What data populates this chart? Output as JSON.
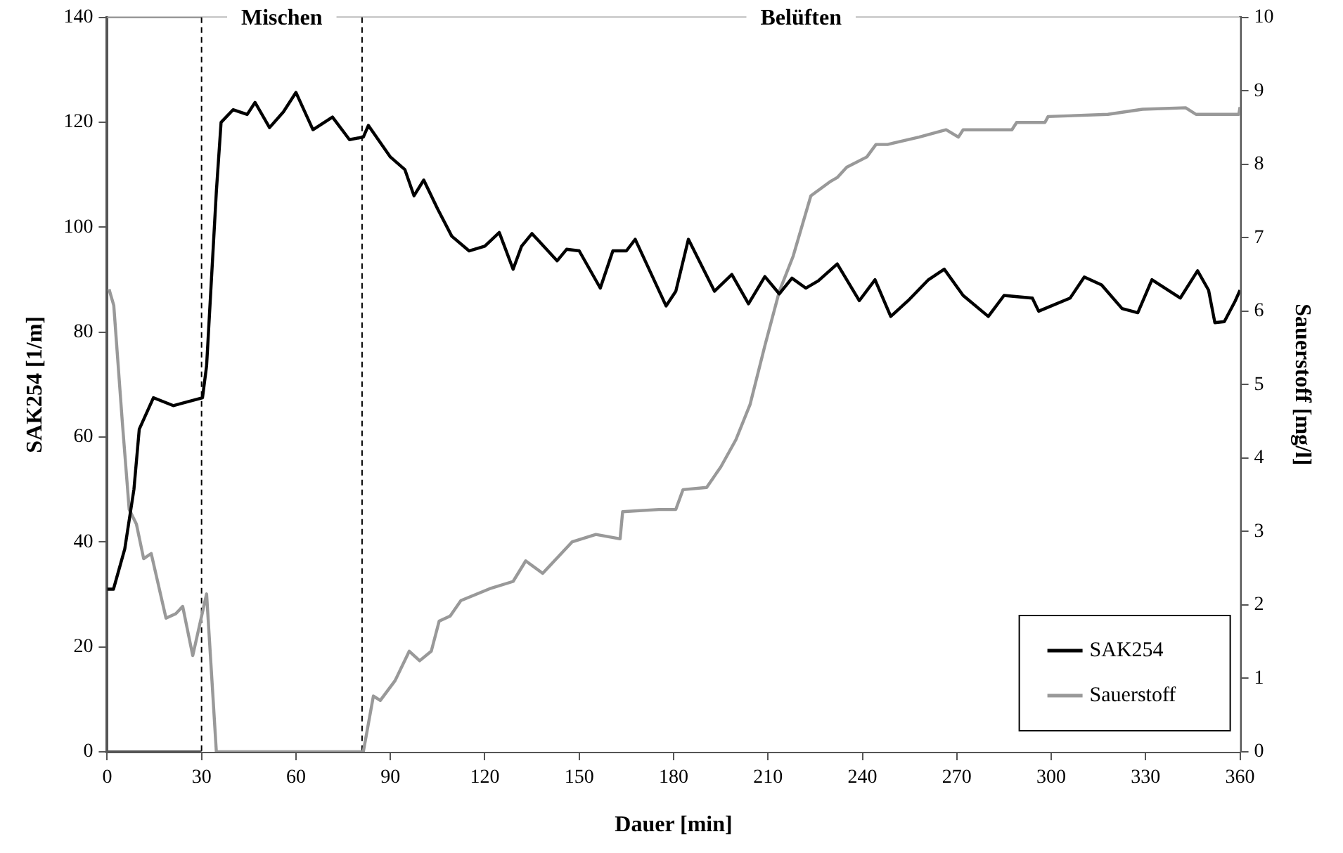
{
  "chart_data": {
    "type": "line",
    "xlabel": "Dauer [min]",
    "ylabel": "SAK254 [1/m]",
    "y2label": "Sauerstoff [mg/l]",
    "xlim": [
      0,
      360
    ],
    "xticks": [
      0,
      30,
      60,
      90,
      120,
      150,
      180,
      210,
      240,
      270,
      300,
      330,
      360
    ],
    "ylim": [
      0,
      140
    ],
    "yticks": [
      0,
      20,
      40,
      60,
      80,
      100,
      120,
      140
    ],
    "y2lim": [
      0,
      10
    ],
    "y2ticks": [
      0,
      1,
      2,
      3,
      4,
      5,
      6,
      7,
      8,
      9,
      10
    ],
    "grid": false,
    "legend": "bottom right",
    "marker": "none",
    "line_style": "solid",
    "ref_lines": [
      {
        "axis": "x",
        "value": 30,
        "label": null,
        "color": "#000000",
        "line_style": "dashed"
      },
      {
        "axis": "x",
        "value": 81,
        "label": null,
        "color": "#000000",
        "line_style": "dashed"
      }
    ],
    "bands": [
      {
        "axis": "x",
        "from": 30,
        "to": 81,
        "label": "Mischen",
        "color": "#ffffff"
      },
      {
        "axis": "x",
        "from": 81,
        "to": 360,
        "label": "Belüften",
        "color": "#ffffff"
      }
    ],
    "series": [
      {
        "name": "SAK254",
        "color": "#000000",
        "x": [
          0,
          2,
          5.6,
          8.5,
          10.2,
          14.7,
          21,
          30.3,
          31.6,
          34.7,
          36.2,
          40,
          44.5,
          47,
          51.6,
          56,
          60,
          65.4,
          71.6,
          77,
          81.4,
          83,
          90,
          94.6,
          97.5,
          100.6,
          105,
          109.5,
          115,
          120,
          124.6,
          129,
          131.7,
          135,
          143,
          146,
          150,
          156.7,
          160.7,
          165,
          167.8,
          177.6,
          180.7,
          184.7,
          193,
          198.5,
          203.8,
          209,
          213.6,
          217.6,
          222,
          226,
          232,
          239,
          244,
          249,
          254.5,
          261,
          266,
          272,
          280,
          285,
          294,
          296,
          306,
          310.5,
          316,
          322.5,
          327.5,
          332,
          341,
          346.5,
          350,
          352,
          355,
          358.5,
          360
        ],
        "values": [
          31,
          31,
          38.7,
          50,
          61.5,
          67.5,
          66,
          67.5,
          73.6,
          106.8,
          120,
          122.4,
          121.5,
          123.8,
          119,
          122,
          125.7,
          118.6,
          121,
          116.7,
          117.2,
          119.4,
          113.4,
          111,
          106,
          109,
          103.5,
          98.3,
          95.5,
          96.4,
          99,
          92,
          96.4,
          98.8,
          93.6,
          95.8,
          95.5,
          88.4,
          95.5,
          95.5,
          97.7,
          85,
          87.8,
          97.7,
          87.8,
          91,
          85.4,
          90.6,
          87.3,
          90.3,
          88.4,
          89.8,
          93,
          86,
          90,
          83,
          86,
          90,
          92,
          87,
          83,
          87,
          86.5,
          84,
          86.5,
          90.5,
          89,
          84.5,
          83.7,
          90,
          86.5,
          91.7,
          88,
          81.8,
          82,
          86,
          88
        ]
      },
      {
        "name": "Sauerstoff",
        "color": "#999999",
        "axis": "y2",
        "x": [
          0.6,
          2.1,
          4.8,
          7,
          9.3,
          11.6,
          14,
          18.7,
          21.8,
          24,
          27.2,
          31.6,
          34.7,
          81.4,
          84.6,
          86.8,
          91.5,
          96,
          99.3,
          103,
          105.5,
          109,
          112.4,
          121.5,
          129,
          133,
          138.4,
          147.8,
          155.3,
          163,
          163.8,
          175.3,
          180.7,
          183,
          190.5,
          195,
          199.8,
          204.3,
          209,
          213.6,
          218,
          223.6,
          229.6,
          232,
          235,
          241.4,
          244.3,
          248,
          258,
          266.6,
          270.5,
          272,
          287.5,
          289,
          298,
          299,
          318,
          329,
          342.7,
          346,
          359.6,
          360
        ],
        "values": [
          6.3,
          6.08,
          4.5,
          3.3,
          3.1,
          2.63,
          2.7,
          1.82,
          1.88,
          1.98,
          1.31,
          2.15,
          0,
          0,
          0.76,
          0.7,
          0.97,
          1.37,
          1.24,
          1.37,
          1.78,
          1.85,
          2.06,
          2.22,
          2.32,
          2.6,
          2.43,
          2.86,
          2.96,
          2.9,
          3.27,
          3.3,
          3.3,
          3.57,
          3.6,
          3.88,
          4.25,
          4.73,
          5.53,
          6.27,
          6.75,
          7.57,
          7.76,
          7.82,
          7.96,
          8.1,
          8.27,
          8.27,
          8.37,
          8.47,
          8.37,
          8.47,
          8.47,
          8.57,
          8.57,
          8.65,
          8.68,
          8.75,
          8.77,
          8.68,
          8.68,
          8.78
        ]
      }
    ]
  }
}
